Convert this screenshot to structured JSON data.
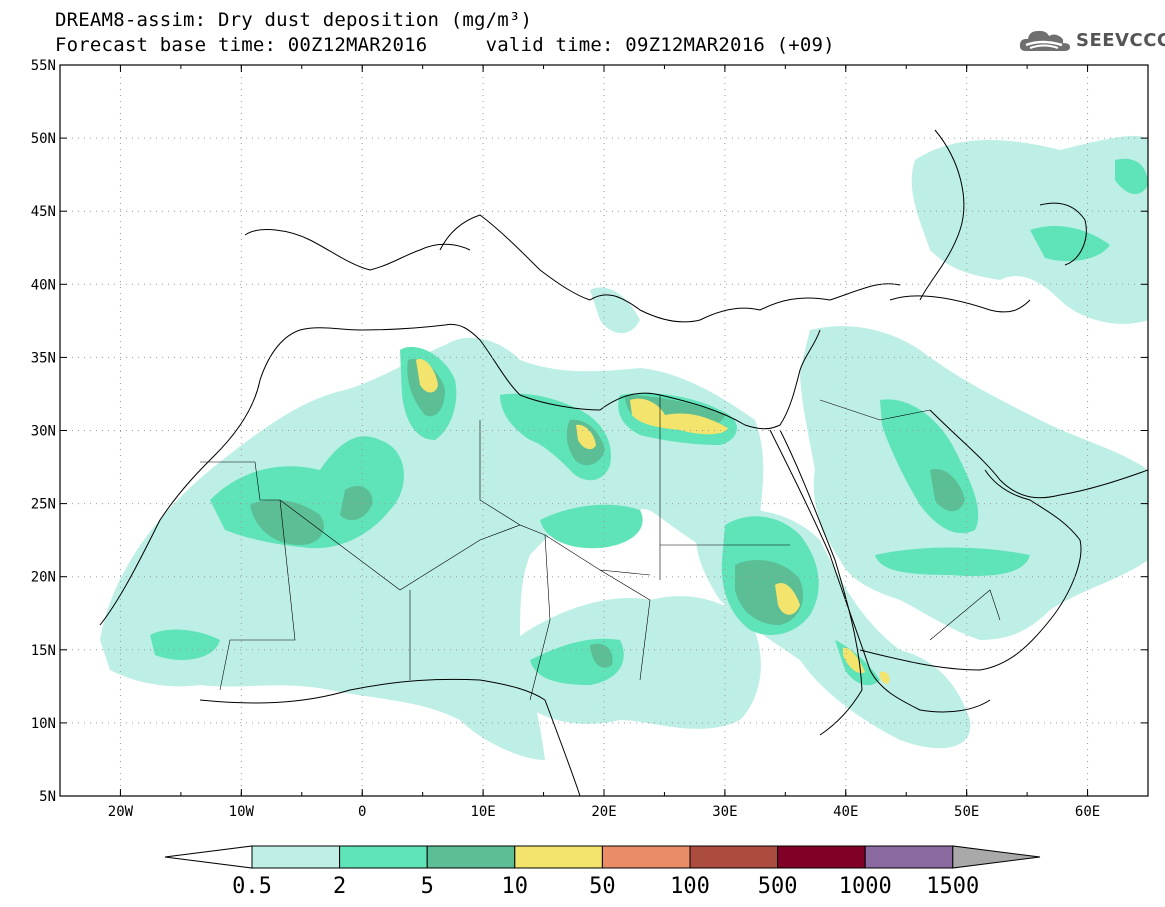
{
  "header": {
    "title_line1": "DREAM8-assim: Dry dust deposition (mg/m³)",
    "title_line2": "Forecast base time: 00Z12MAR2016     valid time: 09Z12MAR2016 (+09)"
  },
  "logo": {
    "text": "SEEVCCC",
    "icon": "cloud-icon"
  },
  "map": {
    "lon_ticks": [
      "20W",
      "10W",
      "0",
      "10E",
      "20E",
      "30E",
      "40E",
      "50E",
      "60E"
    ],
    "lat_ticks": [
      "55N",
      "50N",
      "45N",
      "40N",
      "35N",
      "30N",
      "25N",
      "20N",
      "15N",
      "10N",
      "5N"
    ],
    "lon_range": [
      -25,
      65
    ],
    "lat_range": [
      5,
      55
    ]
  },
  "colorbar": {
    "labels": [
      "0.5",
      "2",
      "5",
      "10",
      "50",
      "100",
      "500",
      "1000",
      "1500"
    ],
    "colors": [
      "#bdefe6",
      "#5fe3b8",
      "#5cbe95",
      "#f2e46c",
      "#e88d66",
      "#ac4c3f",
      "#800026",
      "#8a6aa0"
    ],
    "under_color": "#ffffff",
    "over_color": "#a9a9a9"
  },
  "legend_colors": {
    "level_0_5": "#bdefe6",
    "level_2": "#5fe3b8",
    "level_5": "#5cbe95",
    "level_10": "#f2e46c"
  }
}
